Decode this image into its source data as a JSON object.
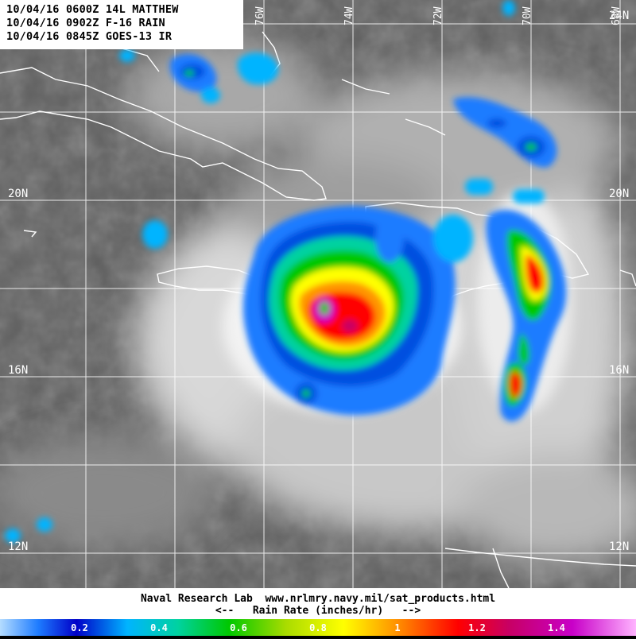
{
  "header": {
    "line1": "10/04/16 0600Z 14L MATTHEW",
    "line2": "10/04/16 0902Z F-16 RAIN",
    "line3": "10/04/16 0845Z GOES-13 IR"
  },
  "grid": {
    "lat_labels": [
      {
        "label": "24N",
        "side": "right"
      },
      {
        "label": "20N",
        "side": "both"
      },
      {
        "label": "16N",
        "side": "both"
      },
      {
        "label": "12N",
        "side": "both"
      }
    ],
    "lon_labels": [
      "76W",
      "74W",
      "72W",
      "70W",
      "68W"
    ]
  },
  "footer": {
    "credit": "Naval Research Lab  www.nrlmry.navy.mil/sat_products.html",
    "legend_title": "<--   Rain Rate (inches/hr)   -->"
  },
  "color_scale": {
    "ticks": [
      "0.2",
      "0.4",
      "0.6",
      "0.8",
      "1",
      "1.2",
      "1.4"
    ],
    "colors": [
      "#1e7cff",
      "#00b4ff",
      "#00d2a0",
      "#00c800",
      "#aadc00",
      "#ffff00",
      "#ff9600",
      "#ff0000",
      "#c80064",
      "#c800c8",
      "#ff64ff"
    ]
  }
}
